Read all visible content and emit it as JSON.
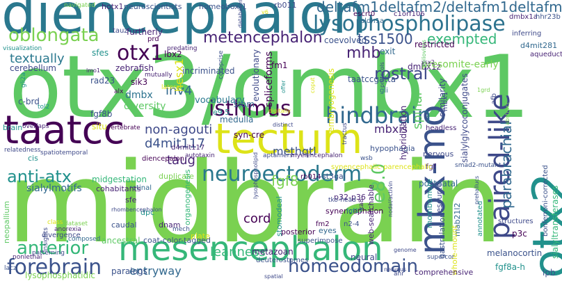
{
  "words": [
    {
      "t": "otx3/dmbx1",
      "c": "#5dc863"
    },
    {
      "t": "midbrain",
      "c": "#7ad151"
    },
    {
      "t": "diencephalon",
      "c": "#2a788e"
    },
    {
      "t": "tectum",
      "c": "#dde318"
    },
    {
      "t": "taatcc",
      "c": "#440154"
    },
    {
      "t": "mesencephalon",
      "c": "#35b779"
    },
    {
      "t": "otx2",
      "c": "#21918c"
    },
    {
      "t": "mbx-mo",
      "c": "#3b528b"
    },
    {
      "t": "hindbrain",
      "c": "#31688e"
    },
    {
      "t": "paired-like",
      "c": "#3e4989"
    },
    {
      "t": "lysophospholipase",
      "c": "#2c728e"
    },
    {
      "t": "deltafm1deltafm2/deltafm1deltafm2",
      "c": "#31688e"
    },
    {
      "t": "oblongata",
      "c": "#7ad151"
    },
    {
      "t": "otx1",
      "c": "#440154"
    },
    {
      "t": "metencephalon",
      "c": "#482475"
    },
    {
      "t": "neuroectoderm",
      "c": "#2a788e"
    },
    {
      "t": "forebrain",
      "c": "#3b528b"
    },
    {
      "t": "anterior",
      "c": "#35b779"
    },
    {
      "t": "isthmus",
      "c": "#440154"
    },
    {
      "t": "homeodomain",
      "c": "#3b528b"
    },
    {
      "t": "anti-atx",
      "c": "#21918c"
    },
    {
      "t": "rostral",
      "c": "#3e4989"
    },
    {
      "t": "textually",
      "c": "#2a788e"
    },
    {
      "t": "tss1500",
      "c": "#3b528b"
    },
    {
      "t": "exempted",
      "c": "#35b779"
    },
    {
      "t": "mhb",
      "c": "#482475"
    },
    {
      "t": "parabrachial",
      "c": "#31688e"
    },
    {
      "t": "e8.0",
      "c": "#5dc863"
    },
    {
      "t": "fgf8",
      "c": "#7ad151"
    },
    {
      "t": "inv4",
      "c": "#31688e"
    },
    {
      "t": "d4mit117",
      "c": "#3b528b"
    },
    {
      "t": "non-agouti",
      "c": "#3e4989"
    },
    {
      "t": "taug",
      "c": "#482475"
    },
    {
      "t": "cord",
      "c": "#440154"
    },
    {
      "t": "leanness",
      "c": "#35b779"
    },
    {
      "t": "entryway",
      "c": "#31688e"
    },
    {
      "t": "spinal",
      "c": "#5dc863"
    },
    {
      "t": "methqtl",
      "c": "#3b528b"
    },
    {
      "t": "sialylmotifs",
      "c": "#31688e"
    },
    {
      "t": "mbxis",
      "c": "#482475"
    },
    {
      "t": "hesx1",
      "c": "#dde318"
    },
    {
      "t": "lbx2",
      "c": "#440154"
    },
    {
      "t": "sik3",
      "c": "#440154"
    },
    {
      "t": "dmbx",
      "c": "#2c728e"
    },
    {
      "t": "diversity",
      "c": "#5dc863"
    },
    {
      "t": "vocabulary",
      "c": "#2a788e"
    },
    {
      "t": "medulla",
      "c": "#31688e"
    },
    {
      "t": "evolutionary",
      "c": "#3e4989"
    },
    {
      "t": "spliceforms",
      "c": "#440154"
    },
    {
      "t": "dmbx1z",
      "c": "#482475"
    },
    {
      "t": "taatccgatta",
      "c": "#3b528b"
    },
    {
      "t": "presomite-early",
      "c": "#7ad151"
    },
    {
      "t": "coevolved",
      "c": "#3b528b"
    },
    {
      "t": "restricted",
      "c": "#440154"
    },
    {
      "t": "exit",
      "c": "#31688e"
    },
    {
      "t": "cerebellum",
      "c": "#3e4989"
    },
    {
      "t": "rad23",
      "c": "#3b528b"
    },
    {
      "t": "zebrafish",
      "c": "#482475"
    },
    {
      "t": "sfes",
      "c": "#21918c"
    },
    {
      "t": "incriminated",
      "c": "#3b528b"
    },
    {
      "t": "fm1",
      "c": "#440154"
    },
    {
      "t": "hotx1",
      "c": "#482475"
    },
    {
      "t": "neuroscientists",
      "c": "#3b528b"
    },
    {
      "t": "homeobox-1",
      "c": "#3b528b"
    },
    {
      "t": "rb011",
      "c": "#3e4989"
    },
    {
      "t": "escrt0",
      "c": "#440154"
    },
    {
      "t": "c1orf106",
      "c": "#482475"
    },
    {
      "t": "aldh1a",
      "c": "#31688e"
    },
    {
      "t": "dmbx1a",
      "c": "#482475"
    },
    {
      "t": "hhr23b",
      "c": "#3b528b"
    },
    {
      "t": "tauz",
      "c": "#3e4989"
    },
    {
      "t": "furtherly",
      "c": "#482475"
    },
    {
      "t": "prd",
      "c": "#440154"
    },
    {
      "t": "d4mit281",
      "c": "#31688e"
    },
    {
      "t": "inferring",
      "c": "#3e4989"
    },
    {
      "t": "navigated",
      "c": "#7ad151"
    },
    {
      "t": "predating",
      "c": "#482475"
    },
    {
      "t": "visualization",
      "c": "#21918c"
    },
    {
      "t": "c-brd",
      "c": "#3b528b"
    },
    {
      "t": "fgf8b",
      "c": "#3b528b"
    },
    {
      "t": "brain",
      "c": "#21918c"
    },
    {
      "t": "overlaps",
      "c": "#482475"
    },
    {
      "t": "situ",
      "c": "#dde318"
    },
    {
      "t": "vertebrate",
      "c": "#440154"
    },
    {
      "t": "stam",
      "c": "#31688e"
    },
    {
      "t": "e9.5",
      "c": "#21918c"
    },
    {
      "t": "syn-cre",
      "c": "#440154"
    },
    {
      "t": "embryogenesis",
      "c": "#dde318"
    },
    {
      "t": "hybridization",
      "c": "#482475"
    },
    {
      "t": "similarity",
      "c": "#3e4989"
    },
    {
      "t": "sialylglycoconjugates",
      "c": "#3e4989"
    },
    {
      "t": "hypophagia",
      "c": "#3b528b"
    },
    {
      "t": "nervous",
      "c": "#3e4989"
    },
    {
      "t": "fgf",
      "c": "#482475"
    },
    {
      "t": "smad2-mutant",
      "c": "#3b528b"
    },
    {
      "t": "d4mit117",
      "c": "#482475"
    },
    {
      "t": "diencepalon",
      "c": "#440154"
    },
    {
      "t": "duplicate",
      "c": "#7ad151"
    },
    {
      "t": "retinal",
      "c": "#31688e"
    },
    {
      "t": "midgestation",
      "c": "#35b779"
    },
    {
      "t": "cohabitants",
      "c": "#482475"
    },
    {
      "t": "rb014",
      "c": "#440154"
    },
    {
      "t": "i-st3gal",
      "c": "#3b528b"
    },
    {
      "t": "synencephalic-parencephalic",
      "c": "#dde318"
    },
    {
      "t": "postnatal",
      "c": "#31688e"
    },
    {
      "t": "p32-p36",
      "c": "#482475"
    },
    {
      "t": "synencephalon",
      "c": "#440154"
    },
    {
      "t": "n2-4",
      "c": "#3b528b"
    },
    {
      "t": "web-searchable",
      "c": "#482475"
    },
    {
      "t": "rhombomere",
      "c": "#21918c"
    },
    {
      "t": "resource",
      "c": "#3e4989"
    },
    {
      "t": "sfe",
      "c": "#482475"
    },
    {
      "t": "dpc",
      "c": "#21918c"
    },
    {
      "t": "caudal",
      "c": "#3b528b"
    },
    {
      "t": "dnam",
      "c": "#482475"
    },
    {
      "t": "organogenesis",
      "c": "#35b779"
    },
    {
      "t": "stomodeal",
      "c": "#21918c"
    },
    {
      "t": "posterior",
      "c": "#440154"
    },
    {
      "t": "eyes",
      "c": "#31688e"
    },
    {
      "t": "fm2",
      "c": "#440154"
    },
    {
      "t": "mab21l2",
      "c": "#31688e"
    },
    {
      "t": "gastrulation",
      "c": "#3b528b"
    },
    {
      "t": "whole-mount",
      "c": "#dde318"
    },
    {
      "t": "annotated",
      "c": "#21918c"
    },
    {
      "t": "neural",
      "c": "#3e4989"
    },
    {
      "t": "metazoan",
      "c": "#482475"
    },
    {
      "t": "ancestral",
      "c": "#5dc863"
    },
    {
      "t": "coat-color-tagged",
      "c": "#3b528b"
    },
    {
      "t": "deuterostomes",
      "c": "#3b528b"
    },
    {
      "t": "superimpose",
      "c": "#3b528b"
    },
    {
      "t": "plate",
      "c": "#dde318"
    },
    {
      "t": "melanocortin",
      "c": "#3b528b"
    },
    {
      "t": "fgf8a-h",
      "c": "#21918c"
    },
    {
      "t": "comprehensive",
      "c": "#482475"
    },
    {
      "t": "paralogs",
      "c": "#3b528b"
    },
    {
      "t": "lysophosphatidic",
      "c": "#7ad151"
    },
    {
      "t": "neopallium",
      "c": "#5dc863"
    },
    {
      "t": "divergence",
      "c": "#3e4989"
    },
    {
      "t": "composed",
      "c": "#31688e"
    },
    {
      "t": "insights",
      "c": "#3e4989"
    },
    {
      "t": "patterning",
      "c": "#3e4989"
    },
    {
      "t": "nonlethal",
      "c": "#482475"
    },
    {
      "t": "lacz",
      "c": "#3b528b"
    },
    {
      "t": "lpb",
      "c": "#3b528b"
    },
    {
      "t": "p3c",
      "c": "#440154"
    },
    {
      "t": "structures",
      "c": "#3e4989"
    },
    {
      "t": "bonferroni-corrected",
      "c": "#3b528b"
    },
    {
      "t": "sialyltransferases",
      "c": "#35b779"
    },
    {
      "t": "tractus",
      "c": "#3e4989"
    },
    {
      "t": "headless",
      "c": "#482475"
    },
    {
      "t": "mbx1",
      "c": "#3e4989"
    },
    {
      "t": "gli",
      "c": "#31688e"
    },
    {
      "t": "afb",
      "c": "#3e4989"
    },
    {
      "t": "mutually",
      "c": "#482475"
    },
    {
      "t": "aqueduct",
      "c": "#482475"
    },
    {
      "t": "tol2",
      "c": "#21918c"
    },
    {
      "t": "gli2a",
      "c": "#21918c"
    },
    {
      "t": "alx",
      "c": "#440154"
    },
    {
      "t": "lateral",
      "c": "#dde318"
    },
    {
      "t": "comprise",
      "c": "#3b528b"
    },
    {
      "t": "relatedness",
      "c": "#3e4989"
    },
    {
      "t": "autotaxin",
      "c": "#482475"
    },
    {
      "t": "aptamers",
      "c": "#3e4989"
    },
    {
      "t": "myelencephalon",
      "c": "#482475"
    },
    {
      "t": "spatiotemporal",
      "c": "#3e4989"
    },
    {
      "t": "cis",
      "c": "#21918c"
    },
    {
      "t": "wsb",
      "c": "#3b528b"
    },
    {
      "t": "tko-head",
      "c": "#3e4989"
    },
    {
      "t": "ka8",
      "c": "#482475"
    },
    {
      "t": "fgf17",
      "c": "#21918c"
    },
    {
      "t": "anr",
      "c": "#3e4989"
    },
    {
      "t": "spatial",
      "c": "#3e4989"
    },
    {
      "t": "supercor",
      "c": "#3b528b"
    },
    {
      "t": "mech",
      "c": "#3b528b"
    },
    {
      "t": "dataset",
      "c": "#7ad151"
    },
    {
      "t": "anorexia",
      "c": "#482475"
    },
    {
      "t": "class",
      "c": "#dde318"
    },
    {
      "t": "rhombencephalon",
      "c": "#3e4989"
    },
    {
      "t": "lysophospholipid",
      "c": "#3e4989"
    },
    {
      "t": "nervous",
      "c": "#3e4989"
    },
    {
      "t": "nodal/activin",
      "c": "#3e4989"
    },
    {
      "t": "vsx2",
      "c": "#482475"
    },
    {
      "t": "poliovirus",
      "c": "#5dc863"
    },
    {
      "t": "1grd",
      "c": "#7ad151"
    },
    {
      "t": "lmo1",
      "c": "#482475"
    },
    {
      "t": "abstract",
      "c": "#7ad151"
    },
    {
      "t": "v6",
      "c": "#dde318"
    },
    {
      "t": "databases",
      "c": "#3e4989"
    },
    {
      "t": "offer",
      "c": "#21918c"
    },
    {
      "t": "distinct",
      "c": "#3e4989"
    },
    {
      "t": "coput",
      "c": "#dde318"
    },
    {
      "t": "digitally",
      "c": "#dde318"
    },
    {
      "t": "protocols",
      "c": "#3e4989"
    },
    {
      "t": "prehallucs",
      "c": "#3b528b"
    },
    {
      "t": "genome",
      "c": "#3e4989"
    },
    {
      "t": "variabl",
      "c": "#482475"
    }
  ]
}
